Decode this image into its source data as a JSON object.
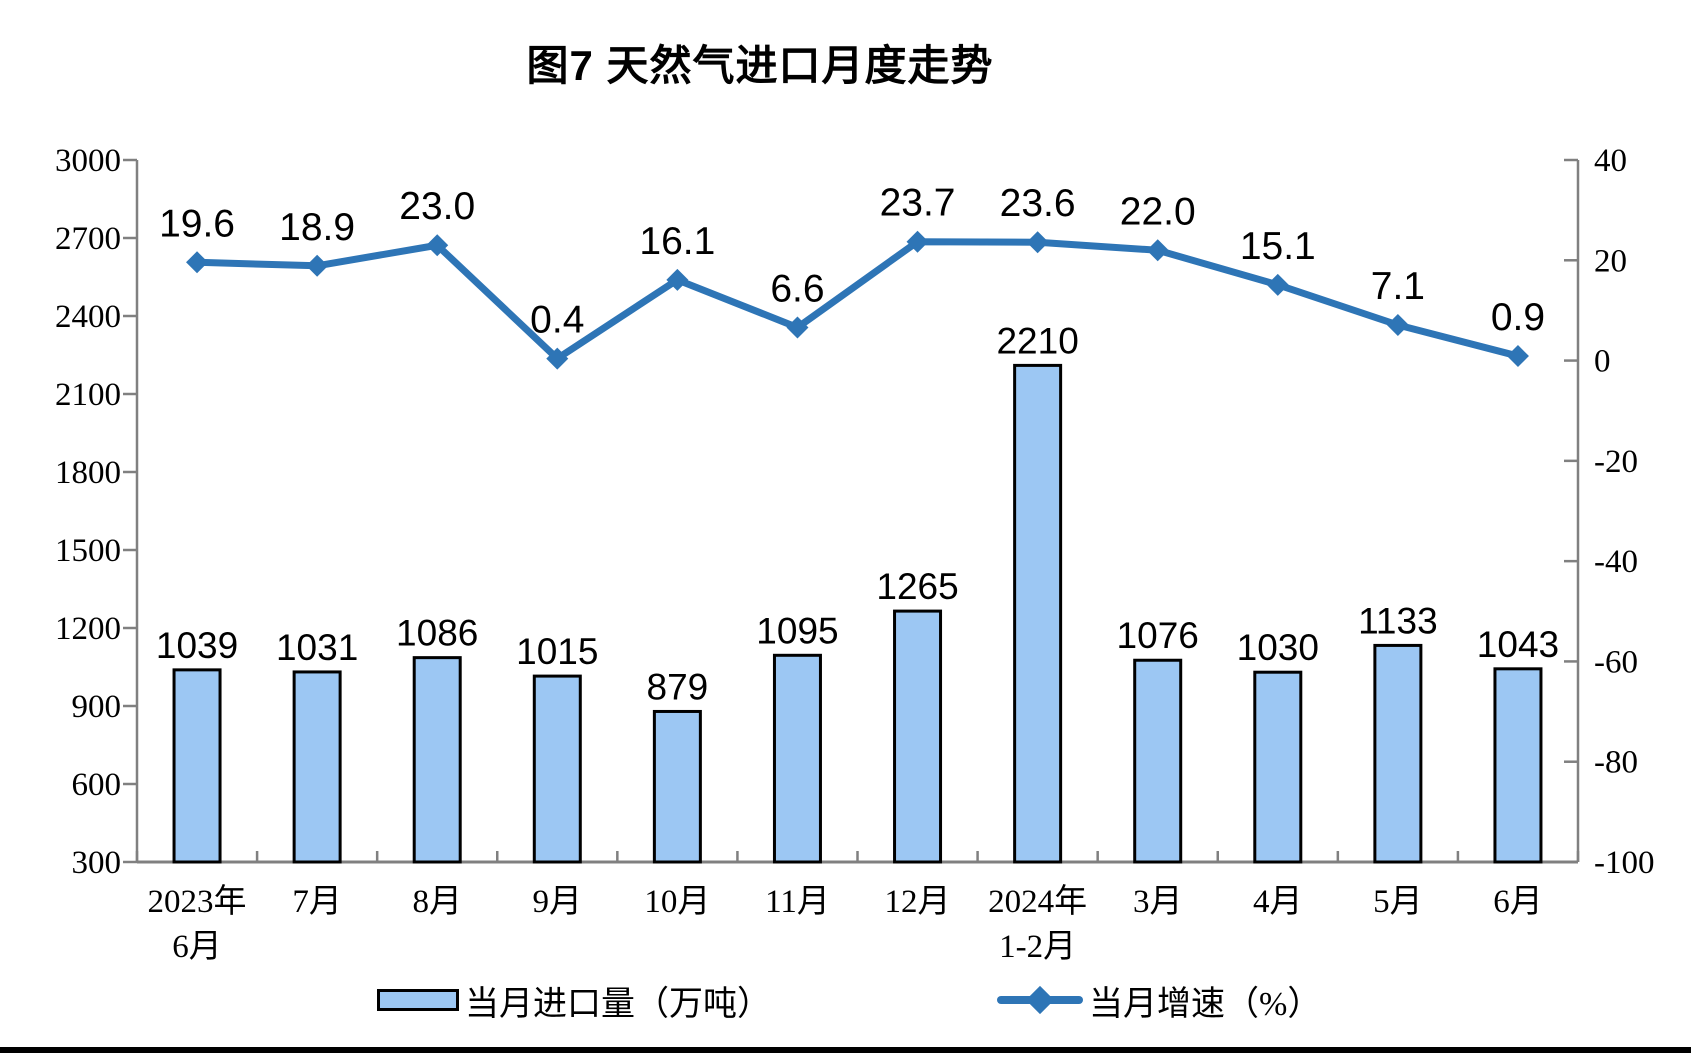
{
  "page": {
    "background": "#FFFFFF",
    "bottom_border_color": "#000000"
  },
  "chart_data": {
    "type": "combo",
    "title": "图7 天然气进口月度走势",
    "categories": [
      [
        "2023年",
        "6月"
      ],
      [
        "7月"
      ],
      [
        "8月"
      ],
      [
        "9月"
      ],
      [
        "10月"
      ],
      [
        "11月"
      ],
      [
        "12月"
      ],
      [
        "2024年",
        "1-2月"
      ],
      [
        "3月"
      ],
      [
        "4月"
      ],
      [
        "5月"
      ],
      [
        "6月"
      ]
    ],
    "series": [
      {
        "name": "当月进口量（万吨）",
        "type": "bar",
        "axis": "left",
        "values": [
          1039,
          1031,
          1086,
          1015,
          879,
          1095,
          1265,
          2210,
          1076,
          1030,
          1133,
          1043
        ],
        "labels": [
          "1039",
          "1031",
          "1086",
          "1015",
          "879",
          "1095",
          "1265",
          "2210",
          "1076",
          "1030",
          "1133",
          "1043"
        ],
        "fill": "#9CC7F3",
        "stroke": "#000000"
      },
      {
        "name": "当月增速（%）",
        "type": "line",
        "axis": "right",
        "values": [
          19.6,
          18.9,
          23.0,
          0.4,
          16.1,
          6.6,
          23.7,
          23.6,
          22.0,
          15.1,
          7.1,
          0.9
        ],
        "labels": [
          "19.6",
          "18.9",
          "23.0",
          "0.4",
          "16.1",
          "6.6",
          "23.7",
          "23.6",
          "22.0",
          "15.1",
          "7.1",
          "0.9"
        ],
        "color": "#2E75B6",
        "marker": "diamond"
      }
    ],
    "left_axis": {
      "min": 300,
      "max": 3000,
      "step": 300,
      "ticks": [
        300,
        600,
        900,
        1200,
        1500,
        1800,
        2100,
        2400,
        2700,
        3000
      ]
    },
    "right_axis": {
      "min": -100,
      "max": 40,
      "step": 20,
      "ticks": [
        -100,
        -80,
        -60,
        -40,
        -20,
        0,
        20,
        40
      ]
    },
    "grid": false,
    "legend_position": "bottom",
    "axis_color": "#808080",
    "label_color": "#000000"
  }
}
